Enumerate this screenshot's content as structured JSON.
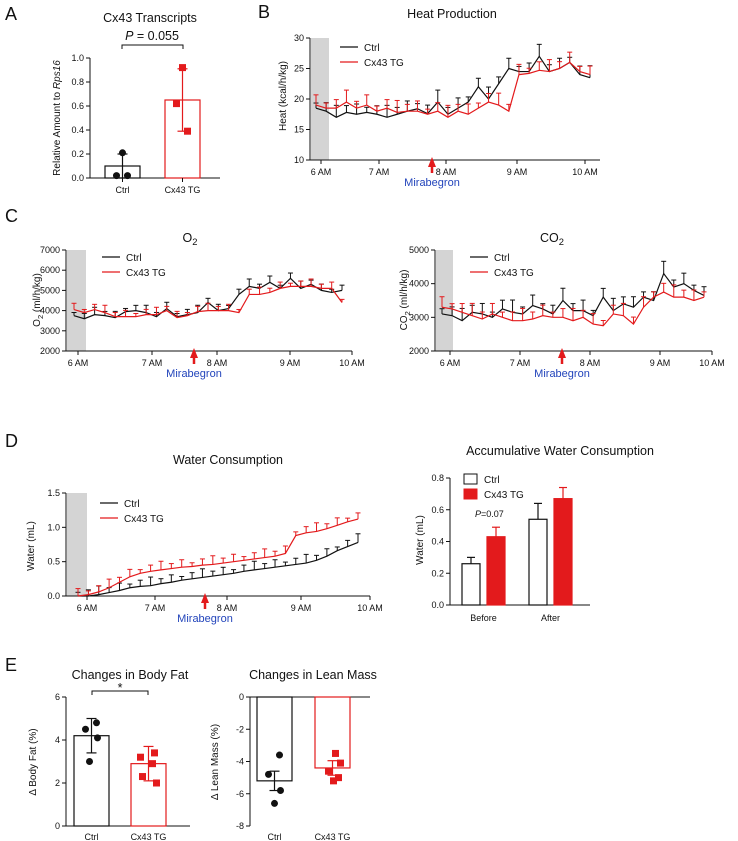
{
  "colors": {
    "ctrl": "#111111",
    "tg": "#e31a1c",
    "shade": "#d4d4d4",
    "mirabegron": "#2244bb"
  },
  "panels": {
    "A": "A",
    "B": "B",
    "C": "C",
    "D": "D",
    "E": "E"
  },
  "mirabegron_label": "Mirabegron",
  "chart_data": [
    {
      "id": "A",
      "type": "bar",
      "title": "Cx43 Transcripts",
      "ylabel": "Relative Amount to Rps16",
      "ylabel_prefix": "Relative Amount to ",
      "ylabel_gene": "Rps16",
      "ylim": [
        0,
        1.0
      ],
      "yticks": [
        "0.0",
        "0.2",
        "0.4",
        "0.6",
        "0.8",
        "1.0"
      ],
      "categories": [
        "Ctrl",
        "Cx43 TG"
      ],
      "values": [
        0.1,
        0.65
      ],
      "errors": [
        0.1,
        0.26
      ],
      "points": [
        [
          0.21,
          0.02,
          0.02
        ],
        [
          0.92,
          0.62,
          0.39
        ]
      ],
      "annotation": "P = 0.055",
      "annotation_p": "P",
      "annotation_rest": " = 0.055"
    },
    {
      "id": "B",
      "type": "line",
      "title": "Heat Production",
      "ylabel": "Heat (kcal/h/kg)",
      "ylim": [
        10,
        30
      ],
      "yticks": [
        "10",
        "15",
        "20",
        "25",
        "30"
      ],
      "xticks": [
        "6 AM",
        "7 AM",
        "8 AM",
        "9 AM",
        "10 AM"
      ],
      "legend": [
        "Ctrl",
        "Cx43 TG"
      ],
      "series": [
        {
          "name": "Ctrl",
          "values": [
            18.5,
            18,
            17,
            17.8,
            17.5,
            17.8,
            17.5,
            17,
            17.5,
            18,
            18.4,
            17.6,
            19.5,
            17.5,
            18.5,
            19.5,
            22,
            20,
            22.5,
            25,
            24.5,
            24.5,
            27,
            24.5,
            25,
            26,
            24,
            23.5
          ]
        },
        {
          "name": "Cx43 TG",
          "values": [
            19,
            18.5,
            18.5,
            19.5,
            18.5,
            19,
            18,
            18.5,
            17.8,
            18,
            18,
            17.5,
            18,
            17,
            18,
            17.5,
            18.5,
            19.5,
            19,
            18,
            24,
            24.2,
            24.7,
            24.5,
            25,
            26,
            24.5,
            24
          ]
        }
      ]
    },
    {
      "id": "C1",
      "type": "line",
      "title": "O2",
      "title_main": "O",
      "title_sub": "2",
      "ylabel": "O2 (ml/h/kg)",
      "ylabel_main": "O",
      "ylabel_sub": "2",
      "ylabel_rest": " (ml/h/kg)",
      "ylim": [
        2000,
        7000
      ],
      "yticks": [
        "2000",
        "3000",
        "4000",
        "5000",
        "6000",
        "7000"
      ],
      "xticks": [
        "6 AM",
        "7 AM",
        "8 AM",
        "9 AM",
        "10 AM"
      ],
      "legend": [
        "Ctrl",
        "Cx43 TG"
      ],
      "series": [
        {
          "name": "Ctrl",
          "values": [
            3750,
            3600,
            3800,
            3750,
            3650,
            3950,
            4000,
            3900,
            3700,
            4100,
            3700,
            3800,
            3900,
            4400,
            4000,
            4100,
            4800,
            5200,
            5100,
            5400,
            5100,
            5600,
            5100,
            5300,
            5000,
            4900,
            5000
          ]
        },
        {
          "name": "Cx43 TG",
          "values": [
            4050,
            3900,
            4050,
            3900,
            3700,
            3700,
            3700,
            3800,
            3800,
            4000,
            3650,
            3750,
            3950,
            4000,
            4000,
            4000,
            3900,
            4800,
            4800,
            4900,
            5100,
            5200,
            5200,
            5200,
            5100,
            5100,
            4400
          ]
        }
      ]
    },
    {
      "id": "C2",
      "type": "line",
      "title": "CO2",
      "title_main": "CO",
      "title_sub": "2",
      "ylabel": "CO2 (ml/h/kg)",
      "ylabel_main": "CO",
      "ylabel_sub": "2",
      "ylabel_rest": " (ml/h/kg)",
      "ylim": [
        2000,
        5000
      ],
      "yticks": [
        "2000",
        "3000",
        "4000",
        "5000"
      ],
      "xticks": [
        "6 AM",
        "7 AM",
        "8 AM",
        "9 AM",
        "10 AM"
      ],
      "legend": [
        "Ctrl",
        "Cx43 TG"
      ],
      "series": [
        {
          "name": "Ctrl",
          "values": [
            3100,
            3050,
            2900,
            3150,
            3100,
            3000,
            3250,
            3150,
            3100,
            3350,
            3250,
            3100,
            3500,
            3200,
            3200,
            3050,
            3600,
            3200,
            3400,
            3300,
            3600,
            3500,
            4300,
            3900,
            4000,
            3800,
            3650
          ]
        },
        {
          "name": "Cx43 TG",
          "values": [
            3300,
            3250,
            3150,
            3050,
            2950,
            3100,
            3000,
            2900,
            2900,
            2950,
            3050,
            3000,
            3000,
            2900,
            3000,
            2800,
            2750,
            3100,
            3050,
            2800,
            3300,
            3600,
            3750,
            3600,
            3600,
            3500,
            3600
          ]
        }
      ]
    },
    {
      "id": "D1",
      "type": "line",
      "title": "Water Consumption",
      "ylabel": "Water (mL)",
      "ylim": [
        0,
        1.5
      ],
      "yticks": [
        "0.0",
        "0.5",
        "1.0",
        "1.5"
      ],
      "xticks": [
        "6 AM",
        "7 AM",
        "8 AM",
        "9 AM",
        "10 AM"
      ],
      "legend": [
        "Ctrl",
        "Cx43 TG"
      ],
      "series": [
        {
          "name": "Ctrl",
          "values": [
            0,
            0,
            0.02,
            0.05,
            0.08,
            0.12,
            0.14,
            0.15,
            0.18,
            0.2,
            0.23,
            0.25,
            0.27,
            0.29,
            0.31,
            0.33,
            0.36,
            0.38,
            0.4,
            0.42,
            0.44,
            0.46,
            0.48,
            0.52,
            0.58,
            0.66,
            0.72,
            0.78
          ]
        },
        {
          "name": "Cx43 TG",
          "values": [
            0,
            0.02,
            0.06,
            0.12,
            0.2,
            0.28,
            0.33,
            0.36,
            0.38,
            0.4,
            0.42,
            0.43,
            0.45,
            0.46,
            0.48,
            0.5,
            0.52,
            0.54,
            0.56,
            0.58,
            0.62,
            0.88,
            0.92,
            0.94,
            0.98,
            1.03,
            1.08,
            1.12
          ]
        }
      ]
    },
    {
      "id": "D2",
      "type": "bar",
      "title": "Accumulative Water Consumption",
      "ylabel": "Water (mL)",
      "ylim": [
        0,
        0.8
      ],
      "yticks": [
        "0.0",
        "0.2",
        "0.4",
        "0.6",
        "0.8"
      ],
      "categories": [
        "Before",
        "After"
      ],
      "legend": [
        "Ctrl",
        "Cx43 TG"
      ],
      "series": [
        {
          "name": "Ctrl",
          "values": [
            0.26,
            0.54
          ],
          "errors": [
            0.04,
            0.1
          ]
        },
        {
          "name": "Cx43 TG",
          "values": [
            0.43,
            0.67
          ],
          "errors": [
            0.06,
            0.07
          ]
        }
      ],
      "annotation": "P=0.07",
      "annotation_p": "P",
      "annotation_rest": "=0.07"
    },
    {
      "id": "E1",
      "type": "bar",
      "title": "Changes in Body Fat",
      "ylabel": "Δ Body Fat (%)",
      "ylim": [
        0,
        6
      ],
      "yticks": [
        "0",
        "2",
        "4",
        "6"
      ],
      "categories": [
        "Ctrl",
        "Cx43 TG"
      ],
      "values": [
        4.2,
        2.9
      ],
      "errors": [
        0.8,
        0.8
      ],
      "points": [
        [
          4.8,
          4.5,
          4.1,
          3.0
        ],
        [
          3.4,
          3.2,
          2.9,
          2.3,
          2.0
        ]
      ],
      "annotation": "*"
    },
    {
      "id": "E2",
      "type": "bar",
      "title": "Changes in Lean Mass",
      "ylabel": "Δ Lean Mass (%)",
      "ylim": [
        -8,
        0
      ],
      "yticks": [
        "0",
        "-2",
        "-4",
        "-6",
        "-8"
      ],
      "categories": [
        "Ctrl",
        "Cx43 TG"
      ],
      "values": [
        -5.2,
        -4.4
      ],
      "errors": [
        0.6,
        0.45
      ],
      "points": [
        [
          -3.6,
          -4.8,
          -5.8,
          -6.6
        ],
        [
          -3.5,
          -4.1,
          -4.6,
          -5.0,
          -5.2
        ]
      ]
    }
  ]
}
